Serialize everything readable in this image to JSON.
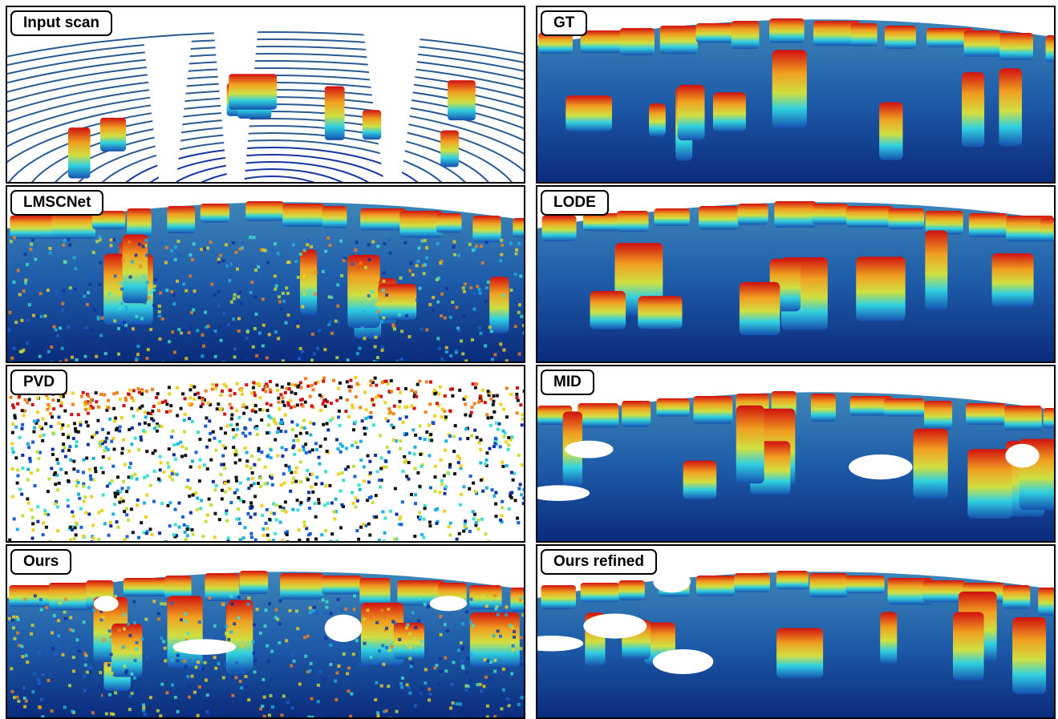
{
  "panels": [
    {
      "label": "Input scan"
    },
    {
      "label": "GT"
    },
    {
      "label": "LMSCNet"
    },
    {
      "label": "LODE"
    },
    {
      "label": "PVD"
    },
    {
      "label": "MID"
    },
    {
      "label": "Ours"
    },
    {
      "label": "Ours refined"
    }
  ]
}
